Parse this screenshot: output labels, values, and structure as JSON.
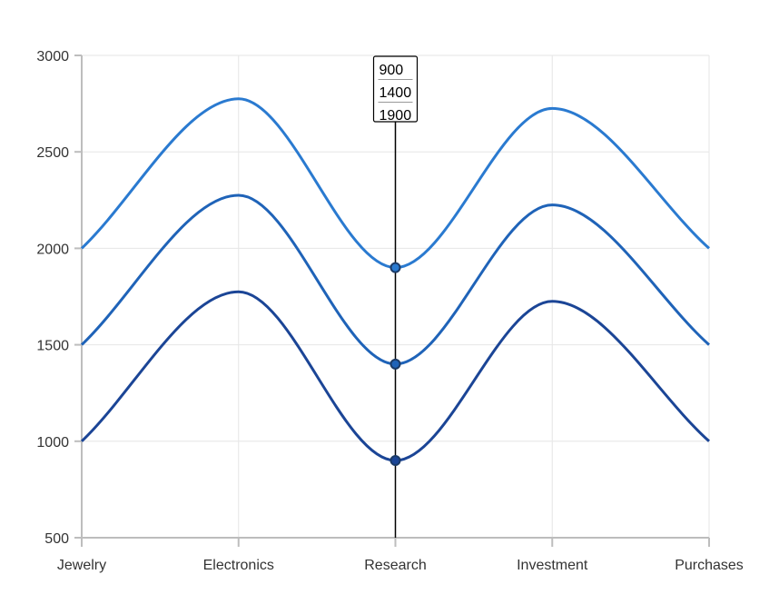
{
  "chart_data": {
    "type": "line",
    "categories": [
      "Jewelry",
      "Electronics",
      "Research",
      "Investment",
      "Purchases"
    ],
    "y_ticks": [
      "500",
      "1000",
      "1500",
      "2000",
      "2500",
      "3000"
    ],
    "ylim": [
      500,
      3000
    ],
    "grid": true,
    "series": [
      {
        "values": [
          1000,
          1775,
          900,
          1725,
          1000
        ],
        "color": "#1b4596"
      },
      {
        "values": [
          1500,
          2275,
          1400,
          2225,
          1500
        ],
        "color": "#1f63b8"
      },
      {
        "values": [
          2000,
          2775,
          1900,
          2725,
          2000
        ],
        "color": "#2a7ad0"
      }
    ],
    "tooltip": {
      "category_index": 2,
      "values": [
        "900",
        "1400",
        "1900"
      ]
    }
  }
}
